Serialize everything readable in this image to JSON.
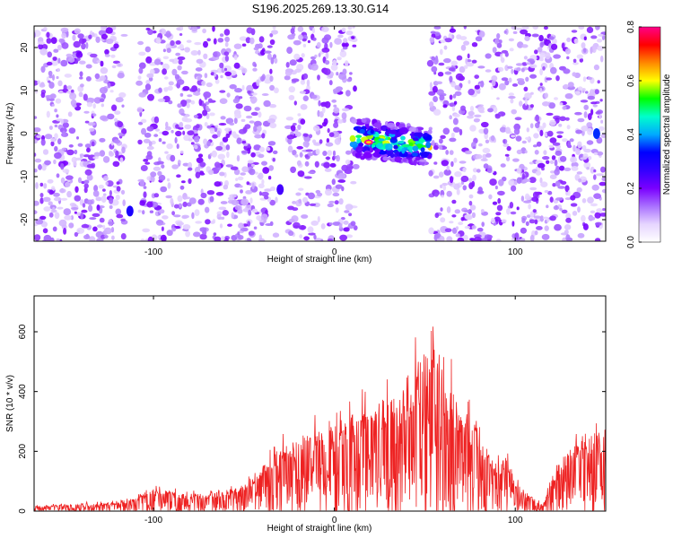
{
  "title": "S196.2025.269.13.30.G14",
  "spectrogram": {
    "xlabel": "Height of straight line (km)",
    "ylabel": "Frequency (Hz)",
    "xlim": [
      -166,
      150
    ],
    "ylim": [
      -25,
      25
    ],
    "xticks": [
      -100,
      0,
      100
    ],
    "yticks": [
      -20,
      -10,
      0,
      10,
      20
    ],
    "colorbar": {
      "label": "Normalized spectral amplitude",
      "range": [
        0.0,
        0.8
      ],
      "ticks": [
        "0.0",
        "0.2",
        "0.4",
        "0.6",
        "0.8"
      ],
      "colormap": [
        "#ffffff",
        "#e6d5ff",
        "#a970ff",
        "#7a00ff",
        "#3300ff",
        "#0000ff",
        "#00aaff",
        "#00ffcc",
        "#00ff00",
        "#ffff00",
        "#ff8800",
        "#ff0000",
        "#ff0088"
      ]
    },
    "gaps": [
      [
        -116,
        -108
      ],
      [
        -32,
        -26
      ],
      [
        12,
        53
      ]
    ],
    "signal_region": {
      "x": [
        10,
        53
      ],
      "y": [
        -7,
        5
      ],
      "peak_amplitude": 0.8
    },
    "secondary_features": [
      {
        "x": -113,
        "y": -18,
        "amplitude": 0.3
      },
      {
        "x": -30,
        "y": -13,
        "amplitude": 0.25
      },
      {
        "x": 145,
        "y": 0,
        "amplitude": 0.35
      }
    ]
  },
  "snr_plot": {
    "xlabel": "Height of straight line (km)",
    "ylabel": "SNR (10 * v/v)",
    "xlim": [
      -166,
      150
    ],
    "ylim": [
      0,
      720
    ],
    "xticks": [
      -100,
      0,
      100
    ],
    "yticks": [
      0,
      200,
      400,
      600
    ],
    "line_color": "#ee2222"
  },
  "chart_data": [
    {
      "type": "heatmap",
      "title": "S196.2025.269.13.30.G14",
      "xlabel": "Height of straight line (km)",
      "ylabel": "Frequency (Hz)",
      "xlim": [
        -166,
        150
      ],
      "ylim": [
        -25,
        25
      ],
      "zlabel": "Normalized spectral amplitude",
      "zlim": [
        0,
        0.8
      ]
    },
    {
      "type": "line",
      "xlabel": "Height of straight line (km)",
      "ylabel": "SNR (10 * v/v)",
      "xlim": [
        -166,
        150
      ],
      "ylim": [
        0,
        720
      ],
      "x": [
        -166,
        -150,
        -140,
        -130,
        -120,
        -110,
        -100,
        -90,
        -80,
        -70,
        -60,
        -50,
        -40,
        -30,
        -20,
        -10,
        0,
        10,
        20,
        30,
        40,
        50,
        55,
        60,
        70,
        80,
        85,
        90,
        95,
        100,
        110,
        115,
        120,
        130,
        140,
        150
      ],
      "y": [
        15,
        20,
        25,
        25,
        30,
        40,
        70,
        60,
        55,
        55,
        65,
        90,
        140,
        200,
        230,
        250,
        270,
        310,
        330,
        360,
        420,
        480,
        620,
        450,
        330,
        280,
        200,
        140,
        180,
        90,
        40,
        20,
        110,
        200,
        250,
        260
      ]
    }
  ]
}
